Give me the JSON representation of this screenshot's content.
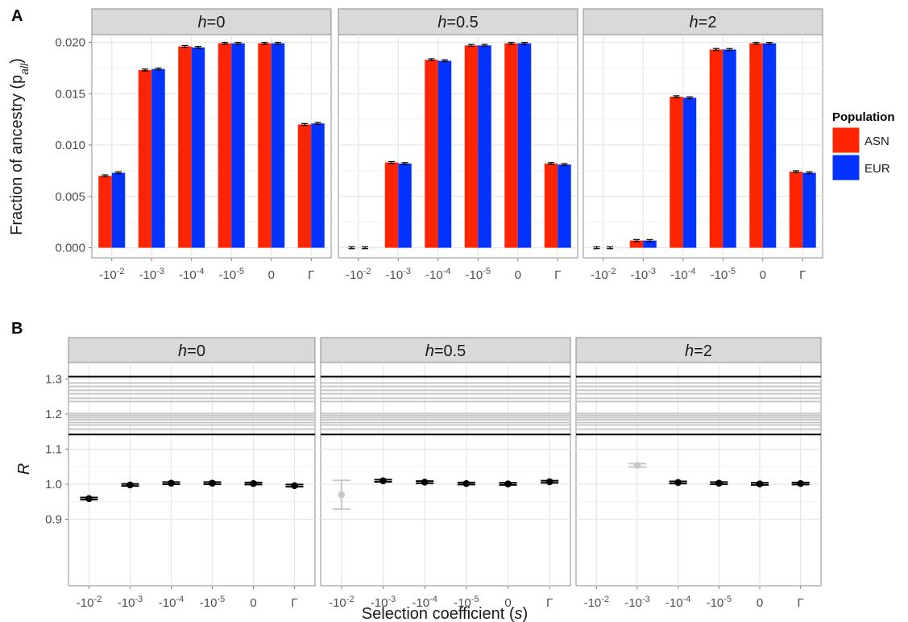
{
  "chart_data": [
    {
      "panel_label": "A",
      "type": "bar",
      "ylabel": "Fraction of ancestry (p",
      "ylabel_sub": "all",
      "ylabel_close": ")",
      "ylim": [
        0,
        0.0205
      ],
      "yticks": [
        "0.000",
        "0.005",
        "0.010",
        "0.015",
        "0.020"
      ],
      "ytick_values": [
        0,
        0.005,
        0.01,
        0.015,
        0.02
      ],
      "categories": [
        {
          "base": "-10",
          "exp": "-2"
        },
        {
          "base": "-10",
          "exp": "-3"
        },
        {
          "base": "-10",
          "exp": "-4"
        },
        {
          "base": "-10",
          "exp": "-5"
        },
        {
          "base": "0",
          "exp": ""
        },
        {
          "base": "Γ",
          "exp": ""
        }
      ],
      "facets": [
        {
          "h_var": "h",
          "h_val": "=0",
          "series": [
            {
              "name": "ASN",
              "values": [
                0.007,
                0.0173,
                0.0196,
                0.0199,
                0.0199,
                0.012
              ]
            },
            {
              "name": "EUR",
              "values": [
                0.0073,
                0.0174,
                0.0195,
                0.0199,
                0.0199,
                0.0121
              ]
            }
          ]
        },
        {
          "h_var": "h",
          "h_val": "=0.5",
          "series": [
            {
              "name": "ASN",
              "values": [
                0.0,
                0.0083,
                0.0183,
                0.0197,
                0.0199,
                0.0082
              ]
            },
            {
              "name": "EUR",
              "values": [
                0.0,
                0.0082,
                0.0182,
                0.0197,
                0.0199,
                0.0081
              ]
            }
          ]
        },
        {
          "h_var": "h",
          "h_val": "=2",
          "series": [
            {
              "name": "ASN",
              "values": [
                0.0,
                0.0007,
                0.0147,
                0.0193,
                0.0199,
                0.0074
              ]
            },
            {
              "name": "EUR",
              "values": [
                0.0,
                0.0007,
                0.0146,
                0.0193,
                0.0199,
                0.0073
              ]
            }
          ]
        }
      ],
      "legend": {
        "title": "Population",
        "position": "right",
        "entries": [
          {
            "label": "ASN",
            "color": "#ff2500"
          },
          {
            "label": "EUR",
            "color": "#0433ff"
          }
        ]
      }
    },
    {
      "panel_label": "B",
      "type": "scatter",
      "ylabel": "R",
      "xlabel": "Selection coefficient (",
      "xlabel_var": "s",
      "xlabel_close": ")",
      "ylim": [
        0.855,
        1.34
      ],
      "yticks": [
        "0.9",
        "1.0",
        "1.1",
        "1.2",
        "1.3"
      ],
      "ytick_values": [
        0.9,
        1.0,
        1.1,
        1.2,
        1.3
      ],
      "reference_lines_black": [
        1.307,
        1.142
      ],
      "reference_lines_gray": [
        1.289,
        1.279,
        1.268,
        1.258,
        1.245,
        1.236,
        1.202,
        1.196,
        1.19,
        1.184,
        1.176,
        1.169,
        1.157
      ],
      "facets": [
        {
          "h_var": "h",
          "h_val": "=0",
          "points": [
            {
              "y": 0.959,
              "err": 0.003,
              "faded": false
            },
            {
              "y": 0.998,
              "err": 0.003,
              "faded": false
            },
            {
              "y": 1.003,
              "err": 0.003,
              "faded": false
            },
            {
              "y": 1.003,
              "err": 0.003,
              "faded": false
            },
            {
              "y": 1.002,
              "err": 0.003,
              "faded": false
            },
            {
              "y": 0.996,
              "err": 0.003,
              "faded": false
            }
          ]
        },
        {
          "h_var": "h",
          "h_val": "=0.5",
          "points": [
            {
              "y": 0.97,
              "err": 0.041,
              "faded": true
            },
            {
              "y": 1.01,
              "err": 0.003,
              "faded": false
            },
            {
              "y": 1.006,
              "err": 0.003,
              "faded": false
            },
            {
              "y": 1.002,
              "err": 0.003,
              "faded": false
            },
            {
              "y": 1.001,
              "err": 0.003,
              "faded": false
            },
            {
              "y": 1.007,
              "err": 0.003,
              "faded": false
            }
          ]
        },
        {
          "h_var": "h",
          "h_val": "=2",
          "points": [
            {
              "y": null,
              "err": null,
              "faded": false
            },
            {
              "y": 1.054,
              "err": 0.005,
              "faded": true
            },
            {
              "y": 1.005,
              "err": 0.003,
              "faded": false
            },
            {
              "y": 1.003,
              "err": 0.003,
              "faded": false
            },
            {
              "y": 1.001,
              "err": 0.003,
              "faded": false
            },
            {
              "y": 1.002,
              "err": 0.003,
              "faded": false
            }
          ]
        }
      ]
    }
  ]
}
